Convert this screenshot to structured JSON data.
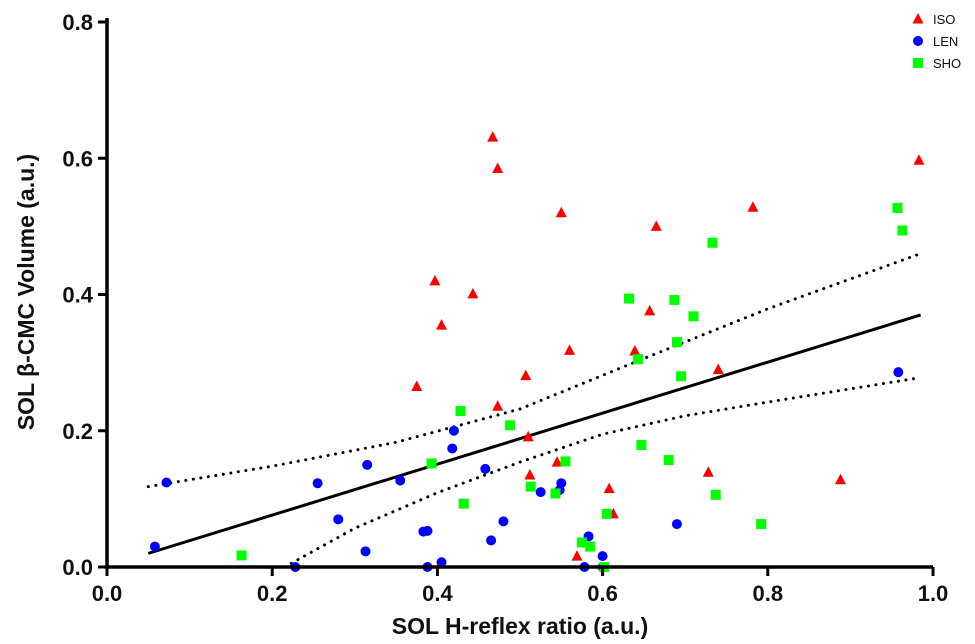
{
  "chart_data": {
    "type": "scatter",
    "xlabel": "SOL H-reflex ratio (a.u.)",
    "ylabel": "SOL β-CMC Volume (a.u.)",
    "xlim": [
      0.0,
      1.0
    ],
    "ylim": [
      0.0,
      0.8
    ],
    "x_ticks": [
      "0.0",
      "0.2",
      "0.4",
      "0.6",
      "0.8",
      "1.0"
    ],
    "y_ticks": [
      "0.0",
      "0.2",
      "0.4",
      "0.6",
      "0.8"
    ],
    "grid": false,
    "legend_position": "top-right",
    "series": [
      {
        "name": "ISO",
        "marker": "triangle",
        "color": "#ff0000",
        "points": [
          [
            0.375,
            0.265
          ],
          [
            0.397,
            0.42
          ],
          [
            0.405,
            0.355
          ],
          [
            0.443,
            0.401
          ],
          [
            0.467,
            0.631
          ],
          [
            0.473,
            0.585
          ],
          [
            0.473,
            0.236
          ],
          [
            0.507,
            0.281
          ],
          [
            0.51,
            0.191
          ],
          [
            0.512,
            0.135
          ],
          [
            0.545,
            0.154
          ],
          [
            0.55,
            0.52
          ],
          [
            0.56,
            0.318
          ],
          [
            0.569,
            0.016
          ],
          [
            0.608,
            0.115
          ],
          [
            0.613,
            0.078
          ],
          [
            0.639,
            0.317
          ],
          [
            0.657,
            0.376
          ],
          [
            0.665,
            0.5
          ],
          [
            0.728,
            0.139
          ],
          [
            0.74,
            0.29
          ],
          [
            0.782,
            0.528
          ],
          [
            0.888,
            0.128
          ],
          [
            0.983,
            0.597
          ]
        ]
      },
      {
        "name": "LEN",
        "marker": "circle",
        "color": "#0000ff",
        "points": [
          [
            0.058,
            0.03
          ],
          [
            0.072,
            0.124
          ],
          [
            0.228,
            0.0
          ],
          [
            0.255,
            0.123
          ],
          [
            0.28,
            0.07
          ],
          [
            0.313,
            0.023
          ],
          [
            0.315,
            0.15
          ],
          [
            0.355,
            0.127
          ],
          [
            0.383,
            0.052
          ],
          [
            0.388,
            0.053
          ],
          [
            0.388,
            0.0
          ],
          [
            0.405,
            0.007
          ],
          [
            0.418,
            0.174
          ],
          [
            0.42,
            0.2
          ],
          [
            0.458,
            0.144
          ],
          [
            0.465,
            0.039
          ],
          [
            0.48,
            0.067
          ],
          [
            0.525,
            0.11
          ],
          [
            0.548,
            0.113
          ],
          [
            0.55,
            0.123
          ],
          [
            0.578,
            0.0
          ],
          [
            0.583,
            0.045
          ],
          [
            0.6,
            0.016
          ],
          [
            0.6,
            0.0
          ],
          [
            0.69,
            0.063
          ],
          [
            0.958,
            0.286
          ]
        ]
      },
      {
        "name": "SHO",
        "marker": "square",
        "color": "#00ff00",
        "points": [
          [
            0.163,
            0.017
          ],
          [
            0.393,
            0.152
          ],
          [
            0.428,
            0.229
          ],
          [
            0.432,
            0.093
          ],
          [
            0.488,
            0.208
          ],
          [
            0.513,
            0.118
          ],
          [
            0.543,
            0.108
          ],
          [
            0.555,
            0.155
          ],
          [
            0.575,
            0.036
          ],
          [
            0.585,
            0.03
          ],
          [
            0.602,
            0.0
          ],
          [
            0.605,
            0.078
          ],
          [
            0.632,
            0.394
          ],
          [
            0.643,
            0.305
          ],
          [
            0.647,
            0.179
          ],
          [
            0.68,
            0.157
          ],
          [
            0.687,
            0.392
          ],
          [
            0.69,
            0.33
          ],
          [
            0.695,
            0.28
          ],
          [
            0.71,
            0.368
          ],
          [
            0.733,
            0.476
          ],
          [
            0.737,
            0.106
          ],
          [
            0.792,
            0.063
          ],
          [
            0.957,
            0.527
          ],
          [
            0.963,
            0.494
          ]
        ]
      }
    ],
    "regression_line": [
      [
        0.05,
        0.02
      ],
      [
        0.985,
        0.37
      ]
    ],
    "confidence_band": {
      "upper": [
        [
          0.05,
          0.118
        ],
        [
          0.2,
          0.148
        ],
        [
          0.35,
          0.183
        ],
        [
          0.5,
          0.232
        ],
        [
          0.65,
          0.306
        ],
        [
          0.8,
          0.379
        ],
        [
          0.985,
          0.46
        ]
      ],
      "lower": [
        [
          0.215,
          0.0
        ],
        [
          0.3,
          0.057
        ],
        [
          0.4,
          0.109
        ],
        [
          0.5,
          0.154
        ],
        [
          0.6,
          0.195
        ],
        [
          0.7,
          0.222
        ],
        [
          0.8,
          0.242
        ],
        [
          0.985,
          0.278
        ]
      ]
    }
  }
}
